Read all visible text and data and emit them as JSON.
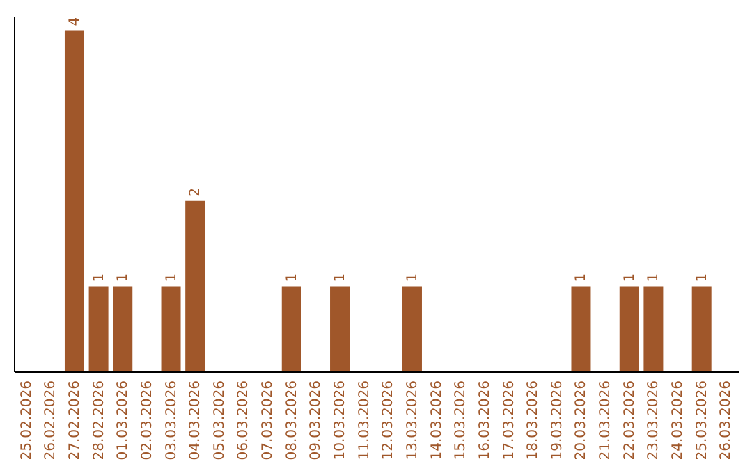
{
  "chart_data": {
    "type": "bar",
    "categories": [
      "25.02.2026",
      "26.02.2026",
      "27.02.2026",
      "28.02.2026",
      "01.03.2026",
      "02.03.2026",
      "03.03.2026",
      "04.03.2026",
      "05.03.2026",
      "06.03.2026",
      "07.03.2026",
      "08.03.2026",
      "09.03.2026",
      "10.03.2026",
      "11.03.2026",
      "12.03.2026",
      "13.03.2026",
      "14.03.2026",
      "15.03.2026",
      "16.03.2026",
      "17.03.2026",
      "18.03.2026",
      "19.03.2026",
      "20.03.2026",
      "21.03.2026",
      "22.03.2026",
      "23.03.2026",
      "24.03.2026",
      "25.03.2026",
      "26.03.2026"
    ],
    "values": [
      0,
      0,
      4,
      1,
      1,
      0,
      1,
      2,
      0,
      0,
      0,
      1,
      0,
      1,
      0,
      0,
      1,
      0,
      0,
      0,
      0,
      0,
      0,
      1,
      0,
      1,
      1,
      0,
      1,
      0
    ],
    "value_labels": [
      null,
      null,
      "4",
      "1",
      "1",
      null,
      "1",
      "2",
      null,
      null,
      null,
      "1",
      null,
      "1",
      null,
      null,
      "1",
      null,
      null,
      null,
      null,
      null,
      null,
      "1",
      null,
      "1",
      "1",
      null,
      "1",
      null
    ],
    "color": "#a0572a",
    "tick_labels": "x",
    "grid": false
  }
}
